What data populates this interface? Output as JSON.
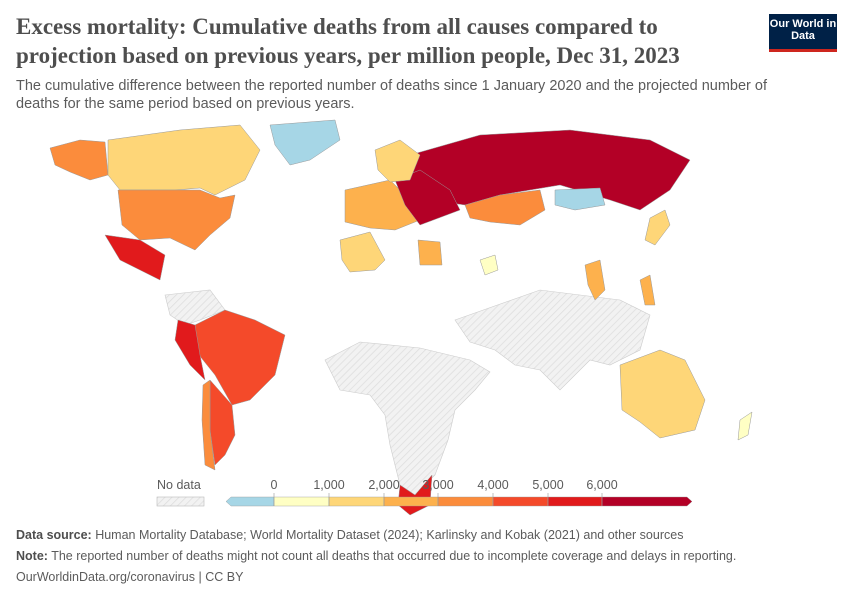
{
  "header": {
    "title": "Excess mortality: Cumulative deaths from all causes compared to projection based on previous years, per million people, Dec 31, 2023",
    "subtitle": "The cumulative difference between the reported number of deaths since 1 January 2020 and the projected number of deaths for the same period based on previous years.",
    "logo": "Our World in Data"
  },
  "colors": {
    "nodata": "#e8e8e8",
    "bins": [
      "#a6d6e6",
      "#ffffc4",
      "#fed678",
      "#fdb14d",
      "#fb8c3c",
      "#f44a2a",
      "#e11a1c",
      "#b30026"
    ]
  },
  "legend": {
    "nodata_label": "No data",
    "ticks": [
      "0",
      "1,000",
      "2,000",
      "3,000",
      "4,000",
      "5,000",
      "6,000"
    ]
  },
  "regions": [
    {
      "name": "Alaska",
      "bin": 4
    },
    {
      "name": "Canada",
      "bin": 2
    },
    {
      "name": "United States",
      "bin": 4
    },
    {
      "name": "Mexico",
      "bin": 6
    },
    {
      "name": "Greenland",
      "bin": 0
    },
    {
      "name": "Brazil",
      "bin": 5
    },
    {
      "name": "Argentina",
      "bin": 5
    },
    {
      "name": "Chile",
      "bin": 4
    },
    {
      "name": "Peru",
      "bin": 6
    },
    {
      "name": "Russia",
      "bin": 7
    },
    {
      "name": "Kazakhstan",
      "bin": 4
    },
    {
      "name": "Mongolia",
      "bin": 0
    },
    {
      "name": "Algeria",
      "bin": 2
    },
    {
      "name": "Egypt",
      "bin": 3
    },
    {
      "name": "South Africa",
      "bin": 6
    },
    {
      "name": "Australia",
      "bin": 2
    },
    {
      "name": "Japan",
      "bin": 2
    },
    {
      "name": "Thailand",
      "bin": 3
    },
    {
      "name": "Philippines",
      "bin": 3
    },
    {
      "name": "Europe West",
      "bin": 3
    },
    {
      "name": "Eastern Europe",
      "bin": 7
    },
    {
      "name": "Scandinavia",
      "bin": 2
    },
    {
      "name": "New Zealand",
      "bin": 1
    },
    {
      "name": "Oman",
      "bin": 1
    }
  ],
  "footer": {
    "source_label": "Data source:",
    "source": " Human Mortality Database; World Mortality Dataset (2024); Karlinsky and Kobak (2021) and other sources",
    "note_label": "Note:",
    "note": " The reported number of deaths might not count all deaths that occurred due to incomplete coverage and delays in reporting.",
    "credit": "OurWorldinData.org/coronavirus | CC BY"
  }
}
